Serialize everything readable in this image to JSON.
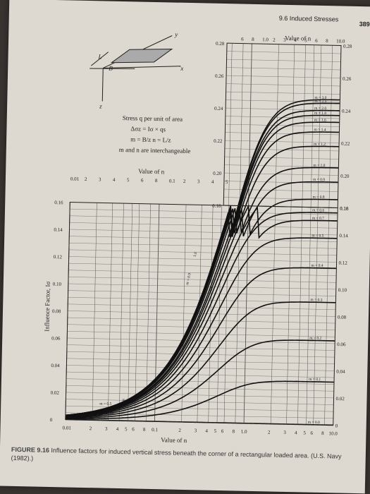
{
  "header": {
    "section": "9.6  Induced Stresses",
    "page_number": "389"
  },
  "figure": {
    "label": "FIGURE 9.16",
    "caption": "Influence factors for induced vertical stress beneath the corner of a rectangular loaded area. (U.S. Navy (1982).)"
  },
  "inset": {
    "axis_y": "y",
    "axis_x": "x",
    "axis_z": "z",
    "dim_L": "L",
    "dim_B": "B",
    "lines": [
      "Stress q per unit of area",
      "Δσz = Iσ × qs",
      "m = B/z    n = L/z",
      "m and n are interchangeable"
    ]
  },
  "chart_data": {
    "type": "line",
    "ylabel": "Influence Factor, Iσ",
    "xlabel": "Value of n",
    "top_axis_label": "Value of n",
    "upper_scale_label": "Value of n",
    "x_scale": "log",
    "xlim": [
      0.01,
      10
    ],
    "ylim": [
      0,
      0.16
    ],
    "upper_ylim": [
      0.18,
      0.28
    ],
    "left_y_ticks": [
      "0",
      "0.02",
      "0.04",
      "0.06",
      "0.08",
      "0.10",
      "0.12",
      "0.14",
      "0.16"
    ],
    "upper_y_ticks": [
      "0.18",
      "0.20",
      "0.22",
      "0.24",
      "0.26",
      "0.28"
    ],
    "bottom_x_ticks": [
      "0.01",
      "2",
      "3",
      "4",
      "5",
      "6",
      "8",
      "0.1",
      "2",
      "3",
      "4",
      "5",
      "6",
      "8",
      "1.0",
      "2",
      "3",
      "4",
      "5",
      "6",
      "8",
      "10.0"
    ],
    "upper_x_ticks": [
      "0.01",
      "2",
      "3",
      "4",
      "5",
      "6",
      "8",
      "0.1",
      "2",
      "3",
      "4",
      "5"
    ],
    "top_x_ticks": [
      "6",
      "8",
      "1.0",
      "2",
      "3",
      "4",
      "5",
      "6",
      "8",
      "10.0"
    ],
    "right_labels": [
      "0.28",
      "0.26",
      "0.24",
      "0.22",
      "0.20",
      "0.18",
      "0.16",
      "0.14",
      "0.12",
      "0.10",
      "0.08",
      "0.06",
      "0.04",
      "0.02",
      "0"
    ],
    "series": [
      {
        "name": "m = 0.0",
        "asymptote": 0.0
      },
      {
        "name": "m = 0.1",
        "asymptote": 0.0316
      },
      {
        "name": "m = 0.2",
        "asymptote": 0.062
      },
      {
        "name": "m = 0.3",
        "asymptote": 0.0894
      },
      {
        "name": "m = 0.4",
        "asymptote": 0.1135
      },
      {
        "name": "m = 0.5",
        "asymptote": 0.1335
      },
      {
        "name": "m = 0.6",
        "asymptote": 0.1511
      },
      {
        "name": "m = 0.7",
        "asymptote": 0.165
      },
      {
        "name": "m = 0.8",
        "asymptote": 0.176
      },
      {
        "name": "m = 0.9",
        "asymptote": 0.185
      },
      {
        "name": "m = 1.0",
        "asymptote": 0.2046
      },
      {
        "name": "m = 1.2",
        "asymptote": 0.2143
      },
      {
        "name": "m = 1.4",
        "asymptote": 0.2202
      },
      {
        "name": "m = 1.6",
        "asymptote": 0.224
      },
      {
        "name": "m = 1.8",
        "asymptote": 0.229
      },
      {
        "name": "m = 2.0",
        "asymptote": 0.231
      },
      {
        "name": "m = 2.5",
        "asymptote": 0.234
      },
      {
        "name": "m = 3.0",
        "asymptote": 0.235
      }
    ],
    "curve_labels": [
      "m = 0.0",
      "m = 0.1",
      "m = 0.2",
      "m = 0.3",
      "m = 0.4",
      "m = 0.5",
      "m = 0.6",
      "m = 0.7",
      "m = 0.8",
      "m = 0.9",
      "m = 1.0",
      "m = 1.2",
      "m = 1.4",
      "m = 1.6",
      "m = 1.8",
      "m = 2.0",
      "m = 2.5",
      "m = 3.0",
      "m = 0.5",
      "m = 0.0",
      "m ="
    ],
    "steep_labels": [
      "1.0",
      "m = 0.9",
      "0.5"
    ]
  }
}
